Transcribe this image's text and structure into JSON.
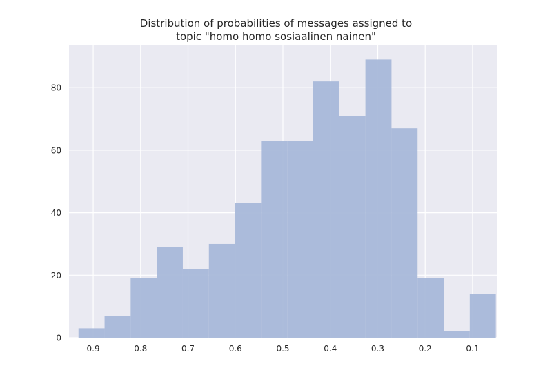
{
  "chart_data": {
    "type": "bar",
    "title_lines": [
      "Distribution of probabilities of messages assigned to",
      "topic \"homo homo sosiaalinen nainen\""
    ],
    "xlabel": "",
    "ylabel": "",
    "x_reversed": true,
    "xlim": [
      0.951,
      0.049
    ],
    "ylim": [
      0,
      93.5
    ],
    "x_ticks": [
      0.9,
      0.8,
      0.7,
      0.6,
      0.5,
      0.4,
      0.3,
      0.2,
      0.1
    ],
    "x_tick_labels": [
      "0.9",
      "0.8",
      "0.7",
      "0.6",
      "0.5",
      "0.4",
      "0.3",
      "0.2",
      "0.1"
    ],
    "y_ticks": [
      0,
      20,
      40,
      60,
      80
    ],
    "y_tick_labels": [
      "0",
      "20",
      "40",
      "60",
      "80"
    ],
    "bin_edges": [
      0.931,
      0.876,
      0.821,
      0.766,
      0.711,
      0.656,
      0.601,
      0.546,
      0.491,
      0.436,
      0.381,
      0.326,
      0.271,
      0.216,
      0.161,
      0.106,
      0.051
    ],
    "values": [
      3,
      7,
      19,
      29,
      22,
      30,
      43,
      63,
      63,
      82,
      71,
      89,
      67,
      19,
      2,
      14
    ],
    "grid": true,
    "colors": {
      "background": "#eaeaf2",
      "grid": "#ffffff",
      "bar": "#a8b8d9",
      "text": "#262626"
    }
  }
}
